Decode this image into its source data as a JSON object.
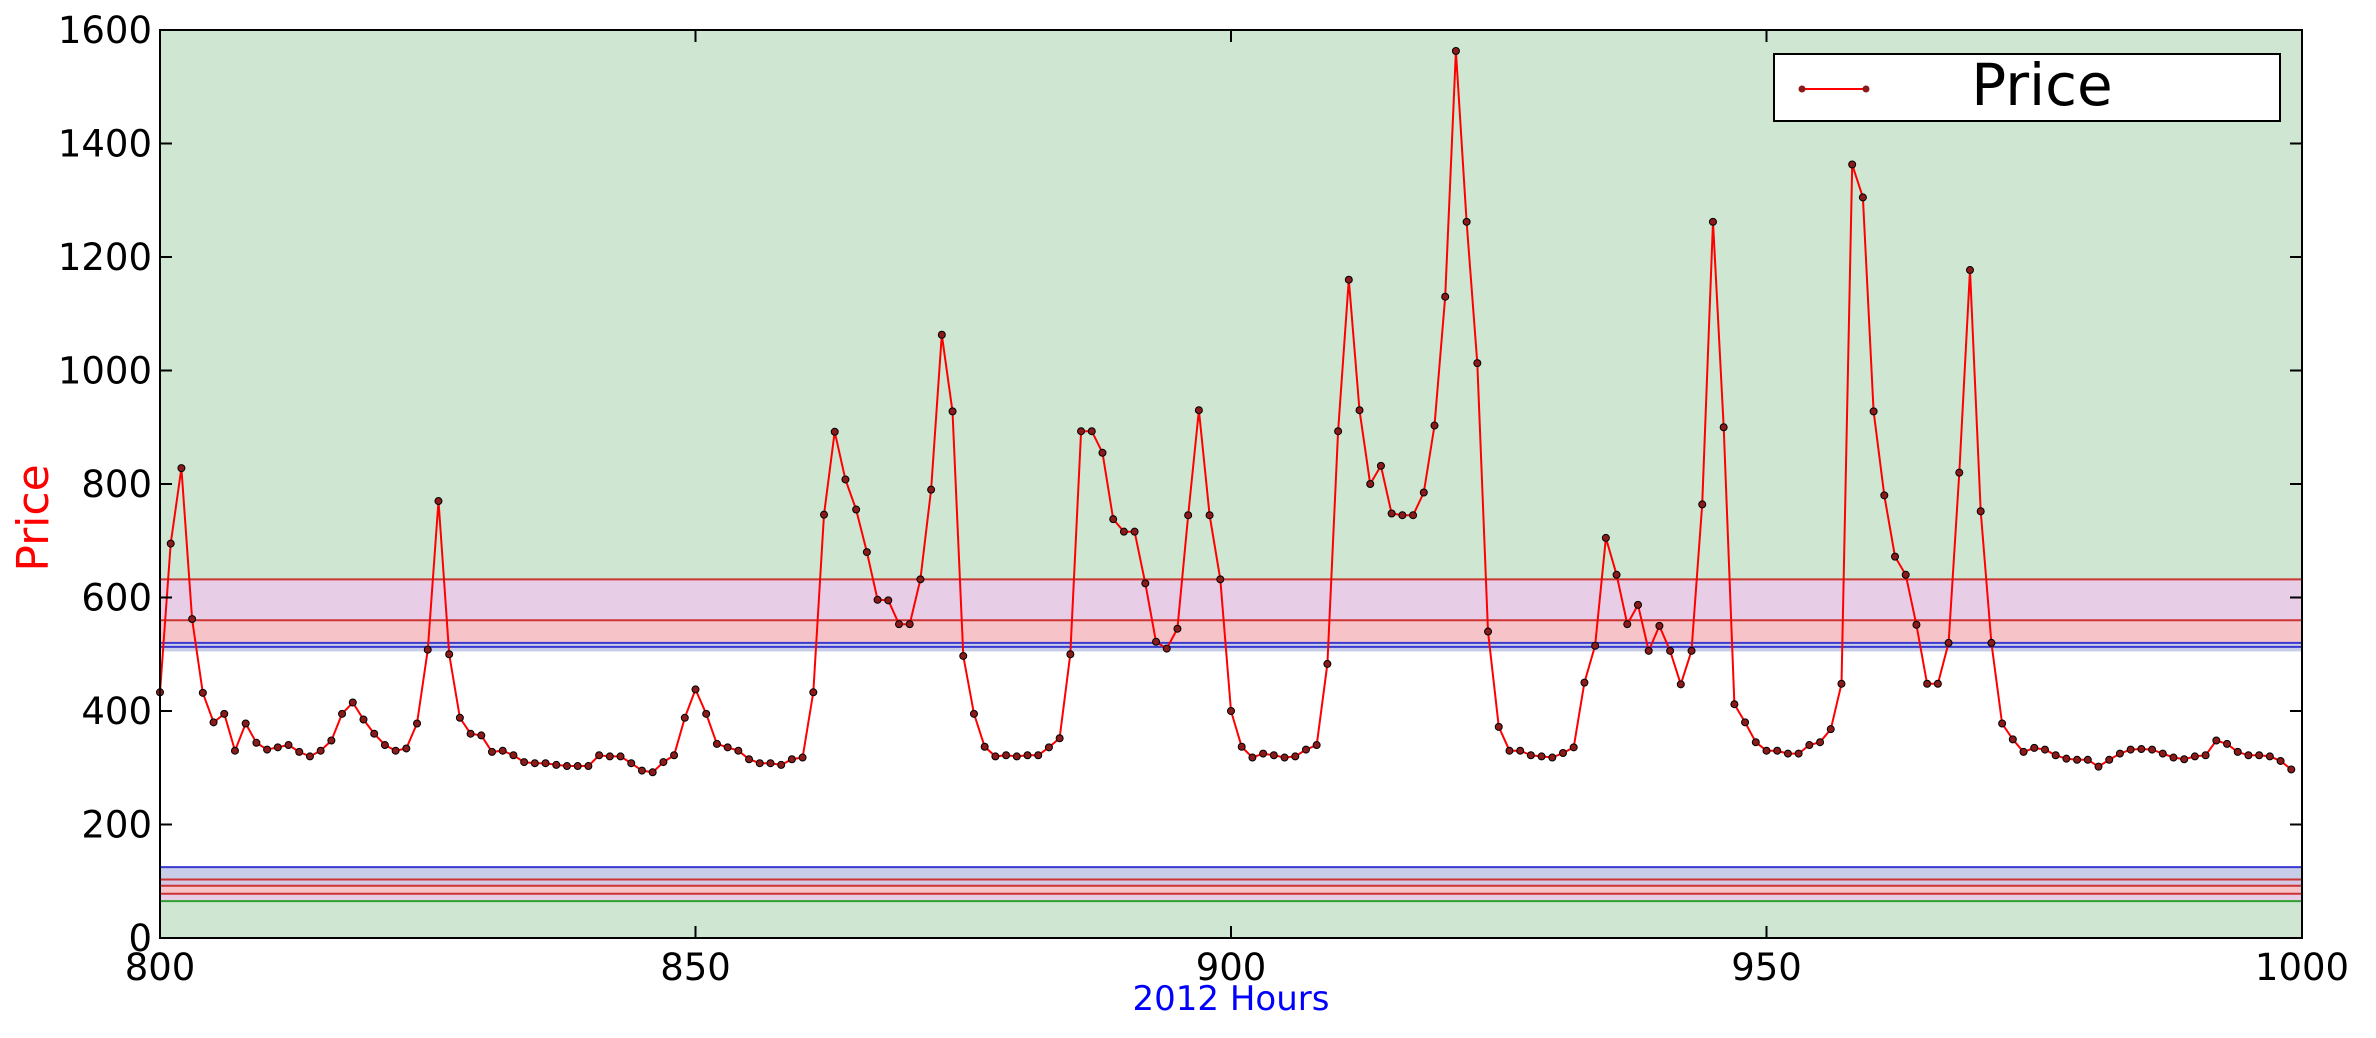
{
  "chart_data": {
    "type": "line",
    "title": "",
    "xlabel": "2012 Hours",
    "ylabel": "Price",
    "xlabel_color": "#0000ff",
    "ylabel_color": "#ff0000",
    "xlim": [
      800,
      1000
    ],
    "ylim": [
      0,
      1600
    ],
    "x_ticks": [
      800,
      850,
      900,
      950,
      1000
    ],
    "y_ticks": [
      0,
      200,
      400,
      600,
      800,
      1000,
      1200,
      1400,
      1600
    ],
    "grid": false,
    "legend": {
      "position": "top-right",
      "entries": [
        "Price"
      ]
    },
    "series": [
      {
        "name": "Price",
        "color": "#ff0000",
        "marker_color": "#8b1a1a",
        "x_start": 800,
        "x_step": 1,
        "values": [
          433,
          695,
          828,
          562,
          432,
          380,
          395,
          330,
          378,
          344,
          332,
          336,
          340,
          328,
          320,
          330,
          348,
          395,
          415,
          385,
          360,
          340,
          330,
          334,
          378,
          508,
          770,
          500,
          388,
          360,
          357,
          328,
          330,
          322,
          310,
          308,
          308,
          305,
          303,
          303,
          303,
          322,
          320,
          320,
          308,
          295,
          292,
          310,
          322,
          388,
          438,
          395,
          342,
          336,
          330,
          315,
          308,
          308,
          305,
          315,
          318,
          433,
          746,
          892,
          808,
          755,
          680,
          596,
          595,
          553,
          553,
          632,
          790,
          1063,
          928,
          497,
          395,
          337,
          320,
          322,
          320,
          322,
          322,
          336,
          352,
          500,
          893,
          893,
          855,
          738,
          716,
          716,
          625,
          522,
          510,
          545,
          745,
          930,
          745,
          632,
          400,
          337,
          318,
          325,
          322,
          318,
          320,
          332,
          340,
          483,
          893,
          1160,
          930,
          800,
          832,
          748,
          745,
          745,
          785,
          903,
          1130,
          1563,
          1262,
          1013,
          540,
          372,
          330,
          330,
          322,
          320,
          318,
          326,
          336,
          450,
          515,
          705,
          640,
          553,
          587,
          506,
          550,
          506,
          447,
          506,
          764,
          1262,
          900,
          412,
          380,
          345,
          330,
          330,
          325,
          325,
          340,
          345,
          368,
          448,
          1363,
          1305,
          928,
          780,
          672,
          640,
          552,
          448,
          448,
          520,
          820,
          1177,
          752,
          520,
          378,
          350,
          328,
          335,
          332,
          322,
          316,
          314,
          314,
          302,
          314,
          325,
          332,
          333,
          332,
          325,
          318,
          315,
          320,
          322,
          348,
          342,
          328,
          322,
          322,
          320,
          312,
          297
        ]
      }
    ],
    "bands": [
      {
        "y0": 632,
        "y1": 1600,
        "fill": "#cfe6d2",
        "edge": "#2e9e2e"
      },
      {
        "y0": 560,
        "y1": 632,
        "fill": "#e8cde6",
        "edge": "#cc3333"
      },
      {
        "y0": 520,
        "y1": 560,
        "fill": "#f6c4c8",
        "edge": "#cc3333"
      },
      {
        "y0": 513,
        "y1": 520,
        "fill": "#c8cde8",
        "edge": "#3a3ad0"
      },
      {
        "y0": 505,
        "y1": 513,
        "fill": "#c8cde8",
        "edge": "#3a3ad0"
      },
      {
        "y0": 103,
        "y1": 125,
        "fill": "#c8cde8",
        "edge": "#3a3ad0"
      },
      {
        "y0": 92,
        "y1": 103,
        "fill": "#d4c8e4",
        "edge": "#cc3333"
      },
      {
        "y0": 78,
        "y1": 92,
        "fill": "#f6c4c8",
        "edge": "#cc3333"
      },
      {
        "y0": 65,
        "y1": 78,
        "fill": "#e8cde6",
        "edge": "#cc3333"
      },
      {
        "y0": 0,
        "y1": 65,
        "fill": "#cfe6d2",
        "edge": "#2e9e2e"
      }
    ]
  }
}
